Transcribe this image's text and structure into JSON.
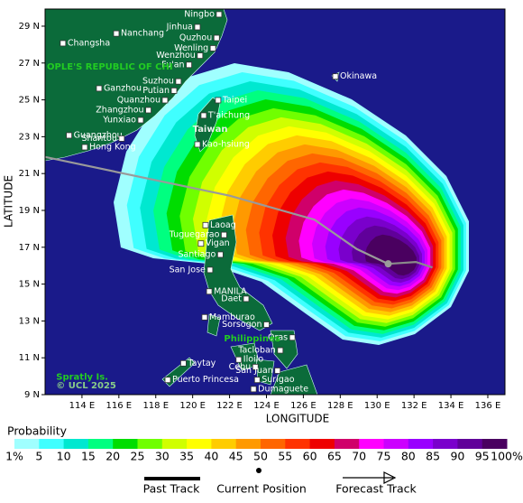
{
  "map": {
    "xlabel": "LONGITUDE",
    "ylabel": "LATITUDE",
    "lonlim": [
      112,
      136.93
    ],
    "latlim": [
      9,
      29.93
    ],
    "xticks": [
      {
        "value": 114,
        "label": "114 E"
      },
      {
        "value": 116,
        "label": "116 E"
      },
      {
        "value": 118,
        "label": "118 E"
      },
      {
        "value": 120,
        "label": "120 E"
      },
      {
        "value": 122,
        "label": "122 E"
      },
      {
        "value": 124,
        "label": "124 E"
      },
      {
        "value": 126,
        "label": "126 E"
      },
      {
        "value": 128,
        "label": "128 E"
      },
      {
        "value": 130,
        "label": "130 E"
      },
      {
        "value": 132,
        "label": "132 E"
      },
      {
        "value": 134,
        "label": "134 E"
      },
      {
        "value": 136,
        "label": "136 E"
      }
    ],
    "yticks": [
      {
        "value": 9,
        "label": "9 N"
      },
      {
        "value": 11,
        "label": "11 N"
      },
      {
        "value": 13,
        "label": "13 N"
      },
      {
        "value": 15,
        "label": "15 N"
      },
      {
        "value": 17,
        "label": "17 N"
      },
      {
        "value": 19,
        "label": "19 N"
      },
      {
        "value": 21,
        "label": "21 N"
      },
      {
        "value": 23,
        "label": "23 N"
      },
      {
        "value": 25,
        "label": "25 N"
      },
      {
        "value": 27,
        "label": "27 N"
      },
      {
        "value": 29,
        "label": "29 N"
      }
    ],
    "places": [
      {
        "name": "Ningbo",
        "lon": 121.43,
        "lat": 29.64,
        "side": "left"
      },
      {
        "name": "Jinhua",
        "lon": 120.26,
        "lat": 28.95,
        "side": "left"
      },
      {
        "name": "Nanchang",
        "lon": 115.86,
        "lat": 28.6,
        "side": "right"
      },
      {
        "name": "Quzhou",
        "lon": 121.3,
        "lat": 28.36,
        "side": "left"
      },
      {
        "name": "Changsha",
        "lon": 112.97,
        "lat": 28.07,
        "side": "right"
      },
      {
        "name": "Wenling",
        "lon": 121.1,
        "lat": 27.8,
        "side": "left"
      },
      {
        "name": "Wenzhou",
        "lon": 120.4,
        "lat": 27.4,
        "side": "left"
      },
      {
        "name": "Fu'an",
        "lon": 119.8,
        "lat": 26.9,
        "side": "left"
      },
      {
        "name": "Okinawa",
        "lon": 127.74,
        "lat": 26.27,
        "side": "right"
      },
      {
        "name": "Suzhou",
        "lon": 119.23,
        "lat": 26.0,
        "side": "left"
      },
      {
        "name": "Ganzhou",
        "lon": 114.93,
        "lat": 25.62,
        "side": "right"
      },
      {
        "name": "Putian",
        "lon": 118.99,
        "lat": 25.5,
        "side": "left"
      },
      {
        "name": "Taipei",
        "lon": 121.38,
        "lat": 24.98,
        "side": "right"
      },
      {
        "name": "Quanzhou",
        "lon": 118.5,
        "lat": 24.98,
        "side": "left"
      },
      {
        "name": "Zhangzhou",
        "lon": 117.6,
        "lat": 24.44,
        "side": "left"
      },
      {
        "name": "T'aichung",
        "lon": 120.6,
        "lat": 24.15,
        "side": "right"
      },
      {
        "name": "Yunxiao",
        "lon": 117.18,
        "lat": 23.9,
        "side": "left"
      },
      {
        "name": "Guangzhou",
        "lon": 113.3,
        "lat": 23.07,
        "side": "right"
      },
      {
        "name": "Shantou",
        "lon": 116.15,
        "lat": 22.9,
        "side": "left"
      },
      {
        "name": "Kao-hsiung",
        "lon": 120.26,
        "lat": 22.58,
        "side": "right"
      },
      {
        "name": "Hong Kong",
        "lon": 114.15,
        "lat": 22.43,
        "side": "right"
      },
      {
        "name": "Laoag",
        "lon": 120.7,
        "lat": 18.2,
        "side": "right"
      },
      {
        "name": "Tuguegarao",
        "lon": 121.7,
        "lat": 17.67,
        "side": "left"
      },
      {
        "name": "Vigan",
        "lon": 120.45,
        "lat": 17.2,
        "side": "right"
      },
      {
        "name": "Santiago",
        "lon": 121.5,
        "lat": 16.6,
        "side": "left"
      },
      {
        "name": "San Jose",
        "lon": 120.94,
        "lat": 15.77,
        "side": "left"
      },
      {
        "name": "MANILA",
        "lon": 120.9,
        "lat": 14.6,
        "side": "right"
      },
      {
        "name": "Daet",
        "lon": 122.9,
        "lat": 14.2,
        "side": "left"
      },
      {
        "name": "Mamburao",
        "lon": 120.65,
        "lat": 13.2,
        "side": "right"
      },
      {
        "name": "Sorsogon",
        "lon": 124.0,
        "lat": 12.8,
        "side": "left"
      },
      {
        "name": "Oras",
        "lon": 125.4,
        "lat": 12.1,
        "side": "left"
      },
      {
        "name": "Tacloban",
        "lon": 124.75,
        "lat": 11.4,
        "side": "left"
      },
      {
        "name": "Iloilo",
        "lon": 122.5,
        "lat": 10.9,
        "side": "right"
      },
      {
        "name": "Taytay",
        "lon": 119.5,
        "lat": 10.7,
        "side": "right"
      },
      {
        "name": "Cebu",
        "lon": 123.4,
        "lat": 10.5,
        "side": "left"
      },
      {
        "name": "San Juan",
        "lon": 124.6,
        "lat": 10.3,
        "side": "left"
      },
      {
        "name": "Puerto Princesa",
        "lon": 118.65,
        "lat": 9.8,
        "side": "right"
      },
      {
        "name": "Surigao",
        "lon": 123.5,
        "lat": 9.8,
        "side": "right"
      },
      {
        "name": "Dumaguete",
        "lon": 123.3,
        "lat": 9.3,
        "side": "right"
      }
    ],
    "regions": [
      {
        "name": "OPLE'S REPUBLIC OF CHI",
        "lon": 112.1,
        "lat": 26.8,
        "color": "#22cc22"
      },
      {
        "name": "Taiwan",
        "lon": 120.0,
        "lat": 23.4,
        "color": "#e8f0e8"
      },
      {
        "name": "Philippines",
        "lon": 121.7,
        "lat": 12.05,
        "color": "#22cc22"
      },
      {
        "name": "Spratly Is.",
        "lon": 112.6,
        "lat": 9.95,
        "color": "#22cc22"
      },
      {
        "name": "© UCL 2025",
        "lon": 112.6,
        "lat": 9.5,
        "color": "#88cc88"
      }
    ],
    "track": {
      "past": [
        [
          112.0,
          21.9
        ],
        [
          122.0,
          19.8
        ],
        [
          126.6,
          18.5
        ],
        [
          128.9,
          16.9
        ],
        [
          130.6,
          16.1
        ]
      ],
      "current": [
        130.6,
        16.1
      ],
      "forecast": [
        [
          130.6,
          16.1
        ],
        [
          132.1,
          16.2
        ],
        [
          133.0,
          15.9
        ]
      ]
    }
  },
  "legend": {
    "title": "Probability",
    "levels": [
      {
        "value": 1,
        "label": "1%"
      },
      5,
      10,
      15,
      20,
      25,
      30,
      35,
      40,
      45,
      50,
      55,
      60,
      65,
      70,
      75,
      80,
      85,
      90,
      95,
      {
        "value": 100,
        "label": "100%"
      }
    ],
    "colors": [
      "#a0ffff",
      "#40ffff",
      "#00e8d0",
      "#00ff80",
      "#00dd00",
      "#70ff00",
      "#d0ff00",
      "#ffff00",
      "#ffcc00",
      "#ff9900",
      "#ff6600",
      "#ff3300",
      "#ee0000",
      "#d0006a",
      "#ff00ff",
      "#cc00ff",
      "#9900ff",
      "#7a00cc",
      "#60009a",
      "#4a0060"
    ],
    "items": [
      "Past Track",
      "Current Position",
      "Forecast Track"
    ]
  }
}
